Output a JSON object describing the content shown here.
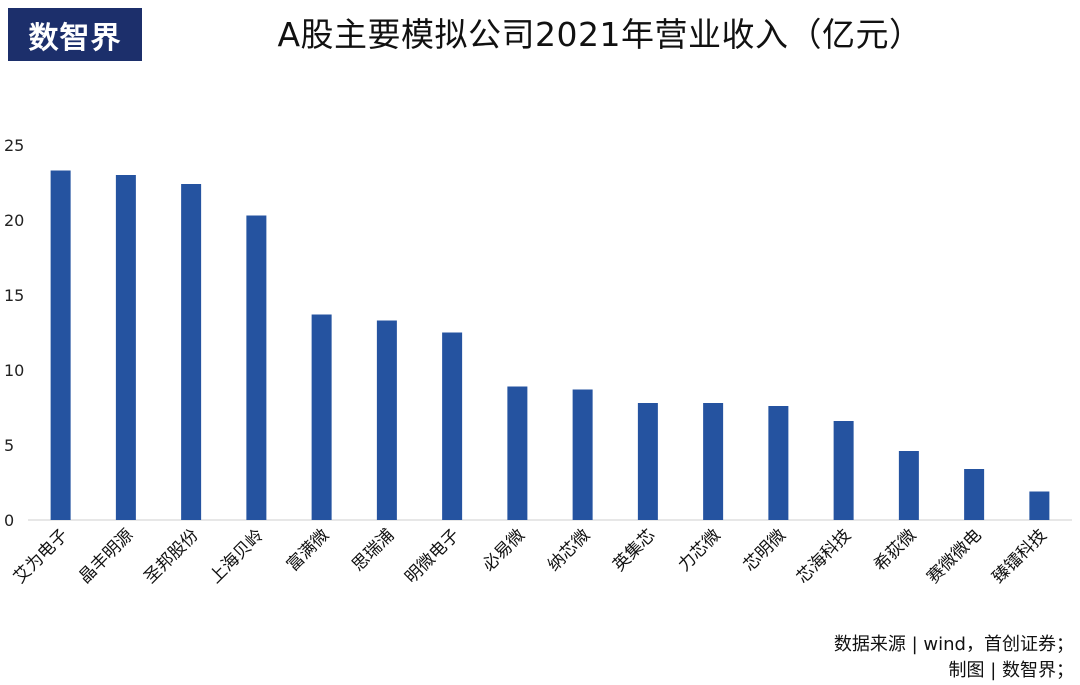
{
  "logo": {
    "text": "数智界"
  },
  "chart_data": {
    "type": "bar",
    "title": "A股主要模拟公司2021年营业收入（亿元）",
    "categories": [
      "艾为电子",
      "晶丰明源",
      "圣邦股份",
      "上海贝岭",
      "富满微",
      "思瑞浦",
      "明微电子",
      "必易微",
      "纳芯微",
      "英集芯",
      "力芯微",
      "芯明微",
      "芯海科技",
      "希荻微",
      "赛微微电",
      "臻镭科技"
    ],
    "values": [
      23.3,
      23.0,
      22.4,
      20.3,
      13.7,
      13.3,
      12.5,
      8.9,
      8.7,
      7.8,
      7.8,
      7.6,
      6.6,
      4.6,
      3.4,
      1.9
    ],
    "yticks": [
      "0",
      "5",
      "10",
      "15",
      "20",
      "25"
    ],
    "ylim": [
      0,
      25
    ],
    "xlabel": "",
    "ylabel": "",
    "grid": false,
    "bar_color": "#2553a0"
  },
  "source": {
    "line1": "数据来源 | wind，首创证券；",
    "line2": "制图 | 数智界；"
  }
}
